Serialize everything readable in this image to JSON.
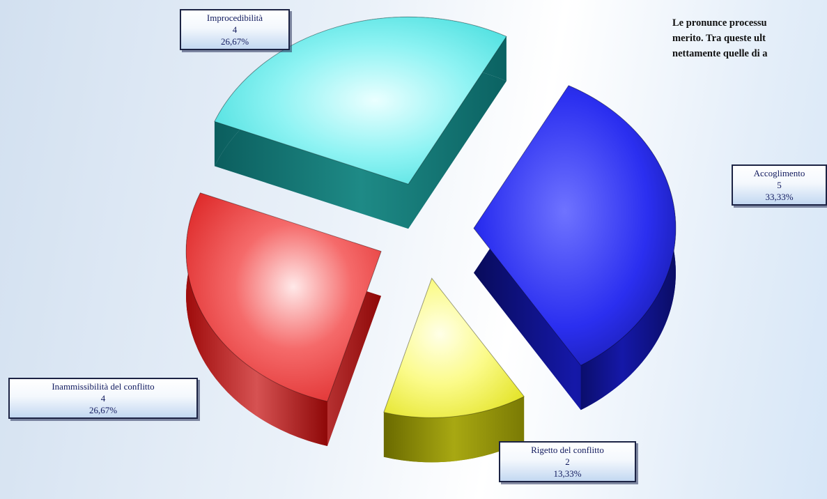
{
  "note": {
    "lines": [
      "Le pronunce processu",
      "merito. Tra queste ult",
      "nettamente quelle di a"
    ]
  },
  "chart_data": {
    "type": "pie",
    "title": "",
    "slices": [
      {
        "label": "Accoglimento",
        "value": 5,
        "percent": "33,33%",
        "color": "#2b2ff0"
      },
      {
        "label": "Rigetto del conflitto",
        "value": 2,
        "percent": "13,33%",
        "color": "#f2f23a"
      },
      {
        "label": "Inammissibilità del conflitto",
        "value": 4,
        "percent": "26,67%",
        "color": "#ee2a2a"
      },
      {
        "label": "Improcedibilità",
        "value": 4,
        "percent": "26,67%",
        "color": "#35e6e6"
      }
    ],
    "exploded": true,
    "three_d": true,
    "legend": "none",
    "data_labels": "callout boxes with category, value and percentage"
  }
}
